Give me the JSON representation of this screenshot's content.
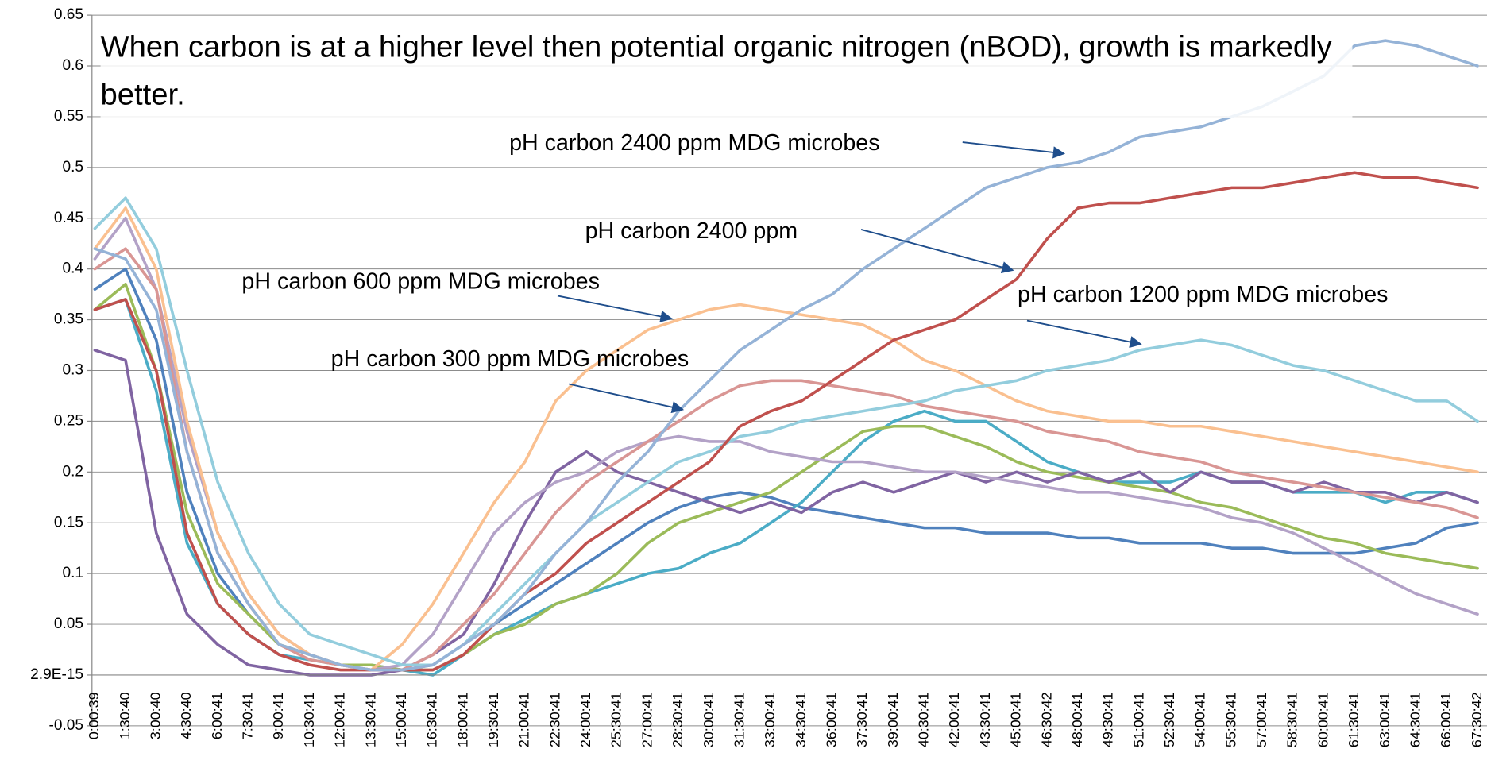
{
  "chart_data": {
    "type": "line",
    "title": "When carbon is at a higher level then potential organic nitrogen (nBOD), growth is markedly better.",
    "annotations": [
      "pH carbon 2400 ppm MDG microbes",
      "pH carbon 2400 ppm",
      "pH carbon 600 ppm MDG microbes",
      "pH carbon 1200 ppm MDG microbes",
      "pH carbon 300 ppm MDG microbes"
    ],
    "categories": [
      "0:00:39",
      "1:30:40",
      "3:00:40",
      "4:30:40",
      "6:00:41",
      "7:30:41",
      "9:00:41",
      "10:30:41",
      "12:00:41",
      "13:30:41",
      "15:00:41",
      "16:30:41",
      "18:00:41",
      "19:30:41",
      "21:00:41",
      "22:30:41",
      "24:00:41",
      "25:30:41",
      "27:00:41",
      "28:30:41",
      "30:00:41",
      "31:30:41",
      "33:00:41",
      "34:30:41",
      "36:00:41",
      "37:30:41",
      "39:00:41",
      "40:30:41",
      "42:00:41",
      "43:30:41",
      "45:00:41",
      "46:30:42",
      "48:00:41",
      "49:30:41",
      "51:00:41",
      "52:30:41",
      "54:00:41",
      "55:30:41",
      "57:00:41",
      "58:30:41",
      "60:00:41",
      "61:30:41",
      "63:00:41",
      "64:30:41",
      "66:00:41",
      "67:30:42"
    ],
    "ylim": [
      -0.05,
      0.65
    ],
    "yticks": [
      -0.05,
      {
        "value": 2.9e-15,
        "label": "2.9E-15"
      },
      0.05,
      0.1,
      0.15,
      0.2,
      0.25,
      0.3,
      0.35,
      0.4,
      0.45,
      0.5,
      0.55,
      0.6,
      0.65
    ],
    "grid": true,
    "series": [
      {
        "color": "#4F81BD",
        "values": [
          0.38,
          0.4,
          0.33,
          0.18,
          0.1,
          0.06,
          0.03,
          0.02,
          0.01,
          0.005,
          0.005,
          0.01,
          0.03,
          0.05,
          0.07,
          0.09,
          0.11,
          0.13,
          0.15,
          0.165,
          0.175,
          0.18,
          0.175,
          0.165,
          0.16,
          0.155,
          0.15,
          0.145,
          0.145,
          0.14,
          0.14,
          0.14,
          0.135,
          0.135,
          0.13,
          0.13,
          0.13,
          0.125,
          0.125,
          0.12,
          0.12,
          0.12,
          0.125,
          0.13,
          0.145,
          0.15
        ]
      },
      {
        "color": "#4BACC6",
        "values": [
          0.36,
          0.37,
          0.28,
          0.13,
          0.07,
          0.04,
          0.02,
          0.015,
          0.01,
          0.01,
          0.005,
          0.0,
          0.02,
          0.04,
          0.055,
          0.07,
          0.08,
          0.09,
          0.1,
          0.105,
          0.12,
          0.13,
          0.15,
          0.17,
          0.2,
          0.23,
          0.25,
          0.26,
          0.25,
          0.25,
          0.23,
          0.21,
          0.2,
          0.19,
          0.19,
          0.19,
          0.2,
          0.19,
          0.19,
          0.18,
          0.18,
          0.18,
          0.17,
          0.18,
          0.18,
          0.17
        ]
      },
      {
        "color": "#9BBB59",
        "values": [
          0.36,
          0.385,
          0.3,
          0.16,
          0.09,
          0.06,
          0.03,
          0.02,
          0.01,
          0.01,
          0.005,
          0.005,
          0.02,
          0.04,
          0.05,
          0.07,
          0.08,
          0.1,
          0.13,
          0.15,
          0.16,
          0.17,
          0.18,
          0.2,
          0.22,
          0.24,
          0.245,
          0.245,
          0.235,
          0.225,
          0.21,
          0.2,
          0.195,
          0.19,
          0.185,
          0.18,
          0.17,
          0.165,
          0.155,
          0.145,
          0.135,
          0.13,
          0.12,
          0.115,
          0.11,
          0.105
        ]
      },
      {
        "color": "#8064A2",
        "values": [
          0.32,
          0.31,
          0.14,
          0.06,
          0.03,
          0.01,
          0.005,
          0.0,
          0.0,
          0.0,
          0.005,
          0.02,
          0.04,
          0.09,
          0.15,
          0.2,
          0.22,
          0.2,
          0.19,
          0.18,
          0.17,
          0.16,
          0.17,
          0.16,
          0.18,
          0.19,
          0.18,
          0.19,
          0.2,
          0.19,
          0.2,
          0.19,
          0.2,
          0.19,
          0.2,
          0.18,
          0.2,
          0.19,
          0.19,
          0.18,
          0.19,
          0.18,
          0.18,
          0.17,
          0.18,
          0.17
        ]
      },
      {
        "color": "#B3A2C7",
        "values": [
          0.41,
          0.45,
          0.38,
          0.24,
          0.14,
          0.08,
          0.04,
          0.02,
          0.01,
          0.005,
          0.01,
          0.04,
          0.09,
          0.14,
          0.17,
          0.19,
          0.2,
          0.22,
          0.23,
          0.235,
          0.23,
          0.23,
          0.22,
          0.215,
          0.21,
          0.21,
          0.205,
          0.2,
          0.2,
          0.195,
          0.19,
          0.185,
          0.18,
          0.18,
          0.175,
          0.17,
          0.165,
          0.155,
          0.15,
          0.14,
          0.125,
          0.11,
          0.095,
          0.08,
          0.07,
          0.06
        ]
      },
      {
        "color": "#D99694",
        "values": [
          0.4,
          0.42,
          0.38,
          0.22,
          0.12,
          0.07,
          0.03,
          0.015,
          0.01,
          0.005,
          0.005,
          0.02,
          0.05,
          0.08,
          0.12,
          0.16,
          0.19,
          0.21,
          0.23,
          0.25,
          0.27,
          0.285,
          0.29,
          0.29,
          0.285,
          0.28,
          0.275,
          0.265,
          0.26,
          0.255,
          0.25,
          0.24,
          0.235,
          0.23,
          0.22,
          0.215,
          0.21,
          0.2,
          0.195,
          0.19,
          0.185,
          0.18,
          0.175,
          0.17,
          0.165,
          0.155
        ]
      },
      {
        "color": "#FAC090",
        "values": [
          0.42,
          0.46,
          0.4,
          0.25,
          0.14,
          0.08,
          0.04,
          0.02,
          0.01,
          0.005,
          0.03,
          0.07,
          0.12,
          0.17,
          0.21,
          0.27,
          0.3,
          0.32,
          0.34,
          0.35,
          0.36,
          0.365,
          0.36,
          0.355,
          0.35,
          0.345,
          0.33,
          0.31,
          0.3,
          0.285,
          0.27,
          0.26,
          0.255,
          0.25,
          0.25,
          0.245,
          0.245,
          0.24,
          0.235,
          0.23,
          0.225,
          0.22,
          0.215,
          0.21,
          0.205,
          0.2
        ]
      },
      {
        "color": "#93CDDD",
        "values": [
          0.44,
          0.47,
          0.42,
          0.3,
          0.19,
          0.12,
          0.07,
          0.04,
          0.03,
          0.02,
          0.01,
          0.01,
          0.03,
          0.06,
          0.09,
          0.12,
          0.15,
          0.17,
          0.19,
          0.21,
          0.22,
          0.235,
          0.24,
          0.25,
          0.255,
          0.26,
          0.265,
          0.27,
          0.28,
          0.285,
          0.29,
          0.3,
          0.305,
          0.31,
          0.32,
          0.325,
          0.33,
          0.325,
          0.315,
          0.305,
          0.3,
          0.29,
          0.28,
          0.27,
          0.27,
          0.25
        ]
      },
      {
        "color": "#C0504D",
        "values": [
          0.36,
          0.37,
          0.3,
          0.14,
          0.07,
          0.04,
          0.02,
          0.01,
          0.005,
          0.005,
          0.005,
          0.005,
          0.02,
          0.05,
          0.08,
          0.1,
          0.13,
          0.15,
          0.17,
          0.19,
          0.21,
          0.245,
          0.26,
          0.27,
          0.29,
          0.31,
          0.33,
          0.34,
          0.35,
          0.37,
          0.39,
          0.43,
          0.46,
          0.465,
          0.465,
          0.47,
          0.475,
          0.48,
          0.48,
          0.485,
          0.49,
          0.495,
          0.49,
          0.49,
          0.485,
          0.48
        ]
      },
      {
        "color": "#95B3D7",
        "values": [
          0.42,
          0.41,
          0.36,
          0.22,
          0.12,
          0.07,
          0.03,
          0.02,
          0.01,
          0.005,
          0.005,
          0.01,
          0.03,
          0.05,
          0.08,
          0.12,
          0.15,
          0.19,
          0.22,
          0.26,
          0.29,
          0.32,
          0.34,
          0.36,
          0.375,
          0.4,
          0.42,
          0.44,
          0.46,
          0.48,
          0.49,
          0.5,
          0.505,
          0.515,
          0.53,
          0.535,
          0.54,
          0.55,
          0.56,
          0.575,
          0.59,
          0.62,
          0.625,
          0.62,
          0.61,
          0.6
        ]
      }
    ]
  }
}
